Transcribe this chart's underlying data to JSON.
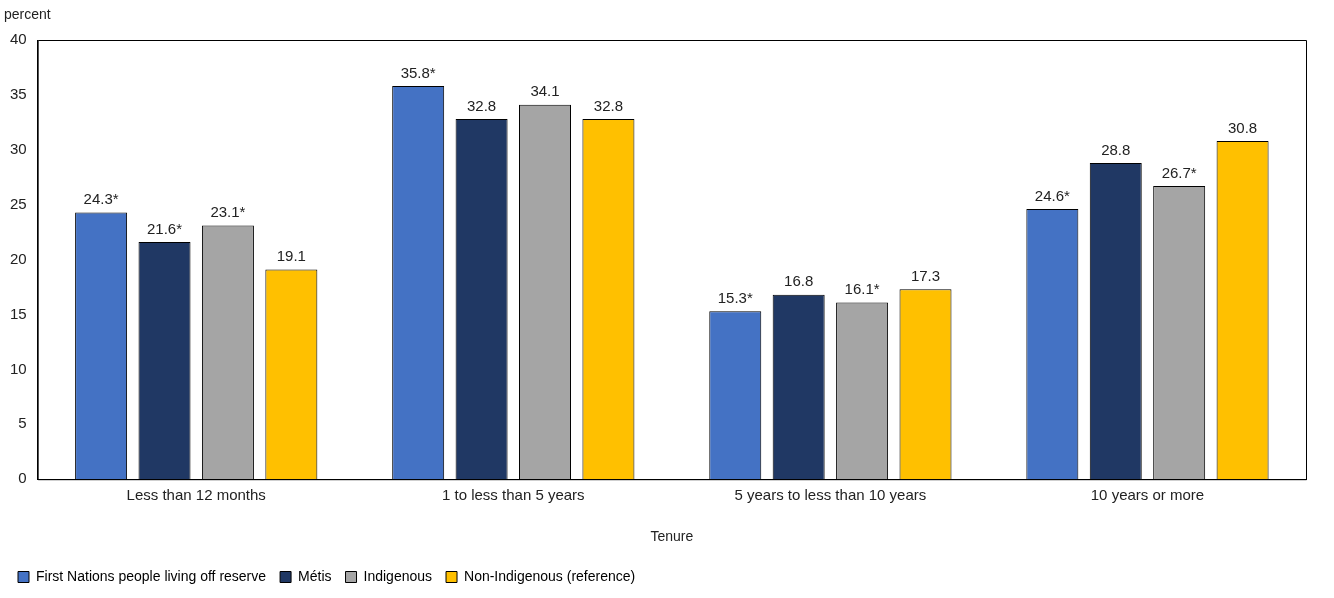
{
  "chart_data": {
    "type": "bar",
    "ylabel": "percent",
    "xlabel": "Tenure",
    "categories": [
      "Less than 12 months",
      "1 to less than 5 years",
      "5 years to less than 10 years",
      "10 years or more"
    ],
    "series": [
      {
        "name": "First Nations people living off reserve",
        "color": "#4472c4",
        "values": [
          24.3,
          35.8,
          15.3,
          24.6
        ],
        "value_labels": [
          "24.3*",
          "35.8*",
          "15.3*",
          "24.6*"
        ]
      },
      {
        "name": "Métis",
        "color": "#203864",
        "values": [
          21.6,
          32.8,
          16.8,
          28.8
        ],
        "value_labels": [
          "21.6*",
          "32.8",
          "16.8",
          "28.8"
        ]
      },
      {
        "name": "Indigenous",
        "color": "#a5a5a5",
        "values": [
          23.1,
          34.1,
          16.1,
          26.7
        ],
        "value_labels": [
          "23.1*",
          "34.1",
          "16.1*",
          "26.7*"
        ]
      },
      {
        "name": "Non-Indigenous (reference)",
        "color": "#ffc000",
        "values": [
          19.1,
          32.8,
          17.3,
          30.8
        ],
        "value_labels": [
          "19.1",
          "32.8",
          "17.3",
          "30.8"
        ]
      }
    ],
    "ylim": [
      0,
      40
    ],
    "yticks": [
      0,
      5,
      10,
      15,
      20,
      25,
      30,
      35,
      40
    ],
    "grid": false,
    "legend": "bottom"
  }
}
